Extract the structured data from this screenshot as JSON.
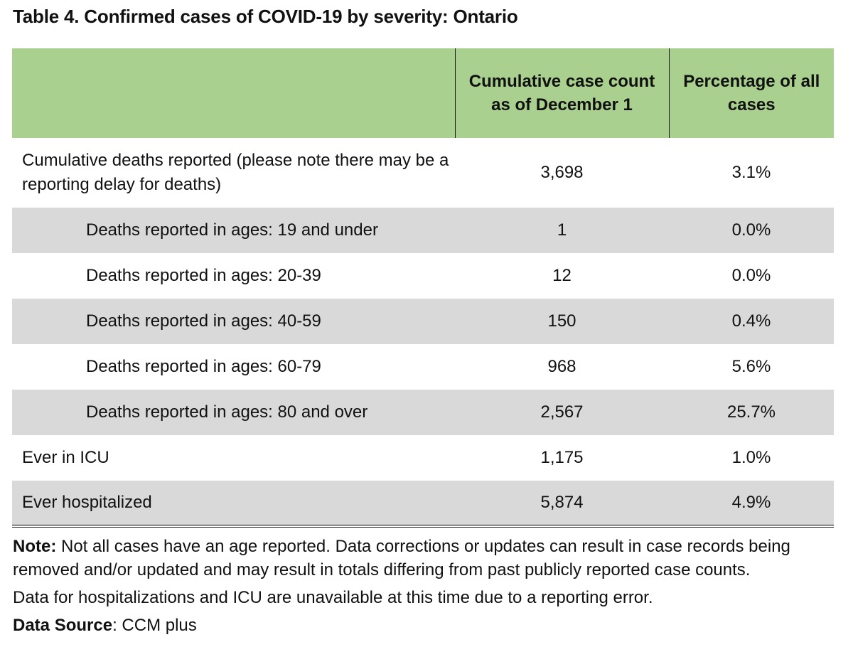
{
  "title": "Table 4. Confirmed cases of COVID-19 by severity: Ontario",
  "table": {
    "headers": [
      "",
      "Cumulative case count as of December 1",
      "Percentage of all cases"
    ],
    "rows": [
      {
        "label": "Cumulative deaths reported (please note there may be a reporting delay for deaths)",
        "count": "3,698",
        "percent": "3.1%"
      },
      {
        "label": "Deaths reported in ages: 19 and under",
        "count": "1",
        "percent": "0.0%"
      },
      {
        "label": "Deaths reported in ages: 20-39",
        "count": "12",
        "percent": "0.0%"
      },
      {
        "label": "Deaths reported in ages: 40-59",
        "count": "150",
        "percent": "0.4%"
      },
      {
        "label": "Deaths reported in ages: 60-79",
        "count": "968",
        "percent": "5.6%"
      },
      {
        "label": "Deaths reported in ages: 80 and over",
        "count": "2,567",
        "percent": "25.7%"
      },
      {
        "label": "Ever in ICU",
        "count": "1,175",
        "percent": "1.0%"
      },
      {
        "label": "Ever hospitalized",
        "count": "5,874",
        "percent": "4.9%"
      }
    ]
  },
  "notes": {
    "note_label": "Note:",
    "note_text": " Not all cases have an age reported. Data corrections or updates can result in case records being removed and/or updated and may result in totals differing from past publicly reported case counts.",
    "icu_text": "Data for hospitalizations and ICU are unavailable at this time due to a reporting error.",
    "source_label": "Data Source",
    "source_text": ": CCM plus"
  },
  "colors": {
    "header_bg": "#a9d08e",
    "shaded_row_bg": "#d9d9d9"
  }
}
